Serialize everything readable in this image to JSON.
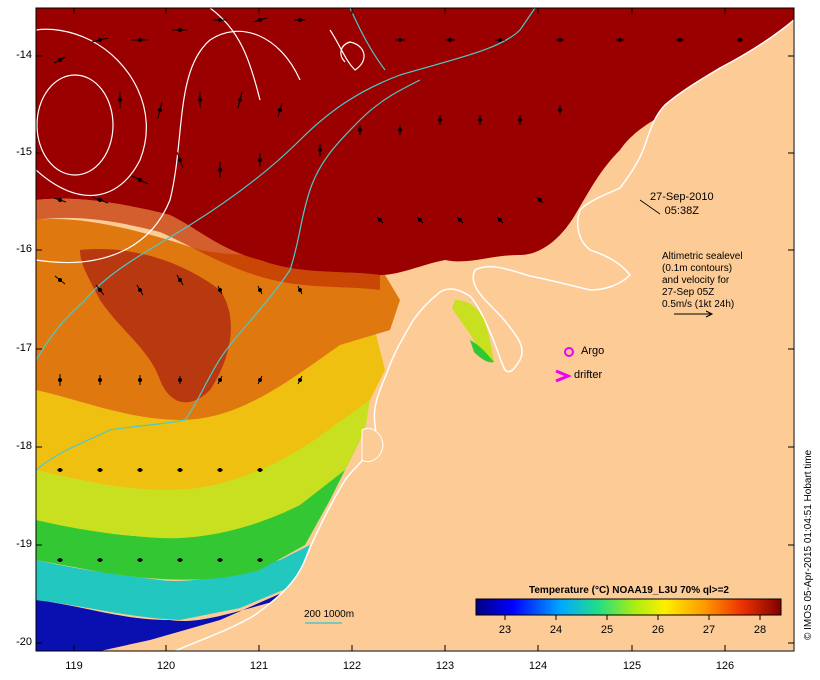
{
  "map": {
    "lon_ticks": [
      "119",
      "120",
      "121",
      "122",
      "123",
      "124",
      "125",
      "126"
    ],
    "lat_ticks": [
      "-14",
      "-15",
      "-16",
      "-17",
      "-18",
      "-19",
      "-20"
    ]
  },
  "annotations": {
    "date": "27-Sep-2010",
    "time": "05:38Z",
    "altimetry_lines": [
      "Altimetric sealevel",
      "(0.1m contours)",
      "and velocity for",
      "27-Sep 05Z",
      "0.5m/s (1kt 24h)"
    ],
    "argo": "Argo",
    "drifter": "drifter",
    "scale_bar": "200  1000m"
  },
  "legend": {
    "title": "Temperature (°C) NOAA19_L3U 70% ql>=2",
    "ticks": [
      "23",
      "24",
      "25",
      "26",
      "27",
      "28"
    ]
  },
  "credit": "© IMOS 05-Apr-2015 01:04:51 Hobart time",
  "colors": {
    "land": "#fccb96",
    "warm": "#9a0000",
    "argo": "#ee00ee",
    "drifter": "#ee00ee",
    "isobath": "#4ec8c8"
  }
}
